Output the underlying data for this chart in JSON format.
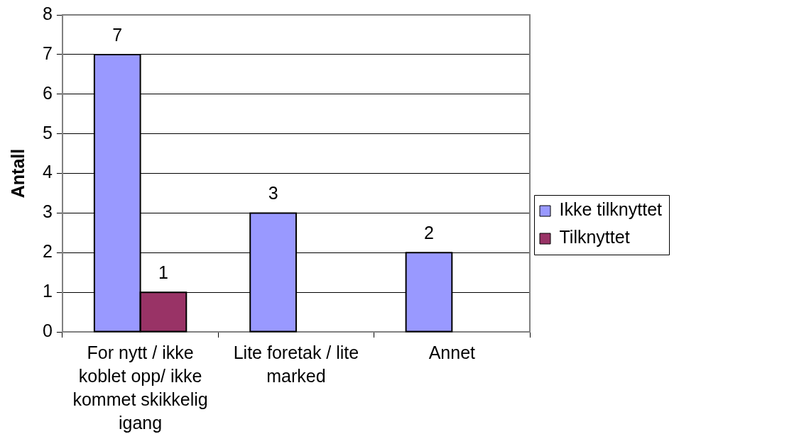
{
  "chart_data": {
    "type": "bar",
    "ylabel": "Antall",
    "categories": [
      "For nytt / ikke koblet opp/ ikke kommet skikkelig igang",
      "Lite foretak / lite marked",
      "Annet"
    ],
    "series": [
      {
        "name": "Ikke tilknyttet",
        "color": "#9999ff",
        "values": [
          7,
          3,
          2
        ]
      },
      {
        "name": "Tilknyttet",
        "color": "#993366",
        "values": [
          1,
          null,
          null
        ]
      }
    ],
    "ylim": [
      0,
      8
    ],
    "yticks": [
      0,
      1,
      2,
      3,
      4,
      5,
      6,
      7,
      8
    ],
    "grid": "y",
    "legend": "right",
    "data_labels": true
  }
}
